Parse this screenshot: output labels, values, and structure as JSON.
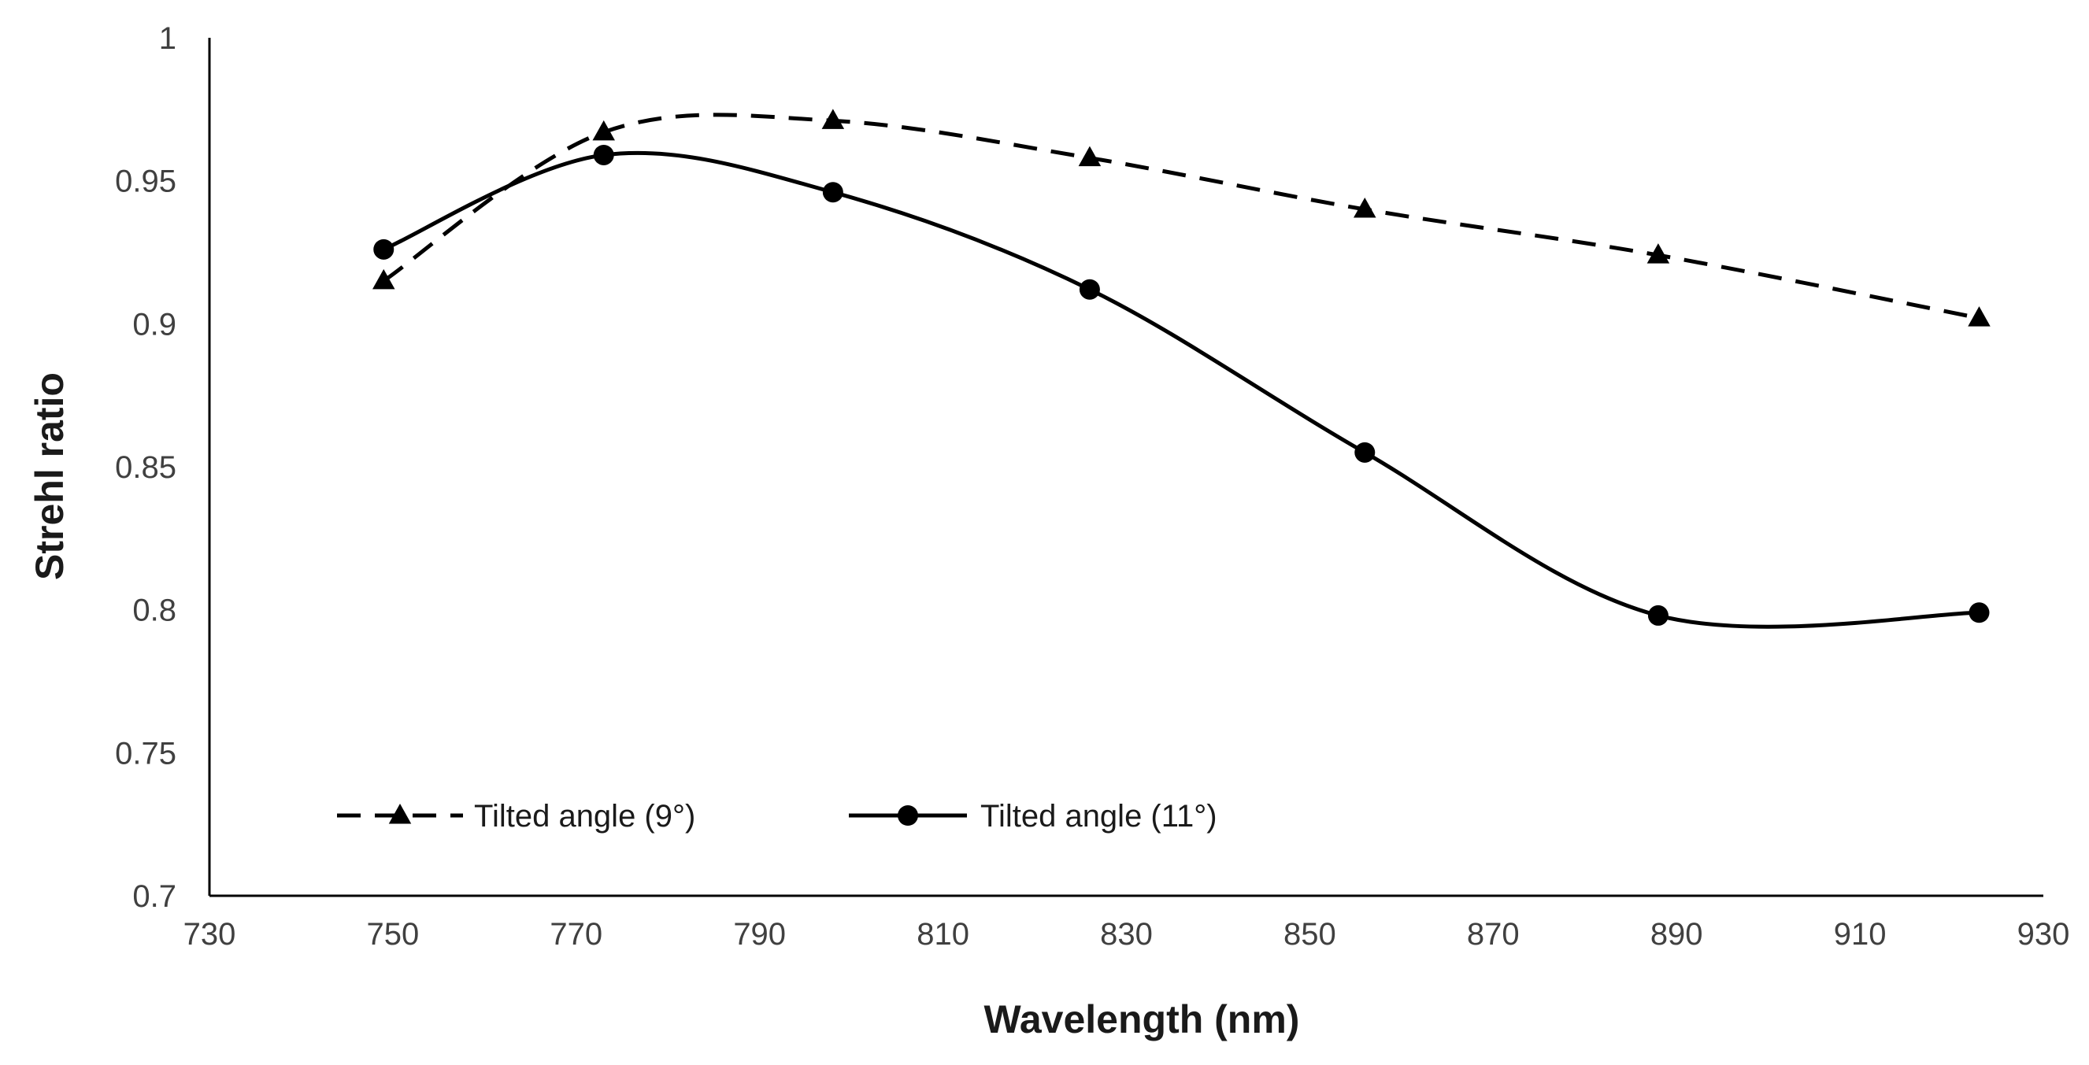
{
  "chart_data": {
    "type": "line",
    "title": "",
    "xlabel": "Wavelength (nm)",
    "ylabel": "Strehl ratio",
    "xlim": [
      730,
      930
    ],
    "ylim": [
      0.7,
      1
    ],
    "x_ticks": [
      730,
      750,
      770,
      790,
      810,
      830,
      850,
      870,
      890,
      910,
      930
    ],
    "y_ticks": [
      0.7,
      0.75,
      0.8,
      0.85,
      0.9,
      0.95,
      1
    ],
    "y_tick_labels": [
      "0.7",
      "0.75",
      "0.8",
      "0.85",
      "0.9",
      "0.95",
      "1"
    ],
    "grid": false,
    "legend_position": "bottom-left",
    "series": [
      {
        "name": "Tilted angle (9°)",
        "line_style": "dashed",
        "marker": "triangle",
        "color": "#000000",
        "x": [
          749,
          773,
          798,
          826,
          856,
          888,
          923
        ],
        "y": [
          0.915,
          0.967,
          0.971,
          0.958,
          0.94,
          0.924,
          0.902
        ]
      },
      {
        "name": "Tilted angle (11°)",
        "line_style": "solid",
        "marker": "circle",
        "color": "#000000",
        "x": [
          749,
          773,
          798,
          826,
          856,
          888,
          923
        ],
        "y": [
          0.926,
          0.959,
          0.946,
          0.912,
          0.855,
          0.798,
          0.799
        ]
      }
    ]
  }
}
